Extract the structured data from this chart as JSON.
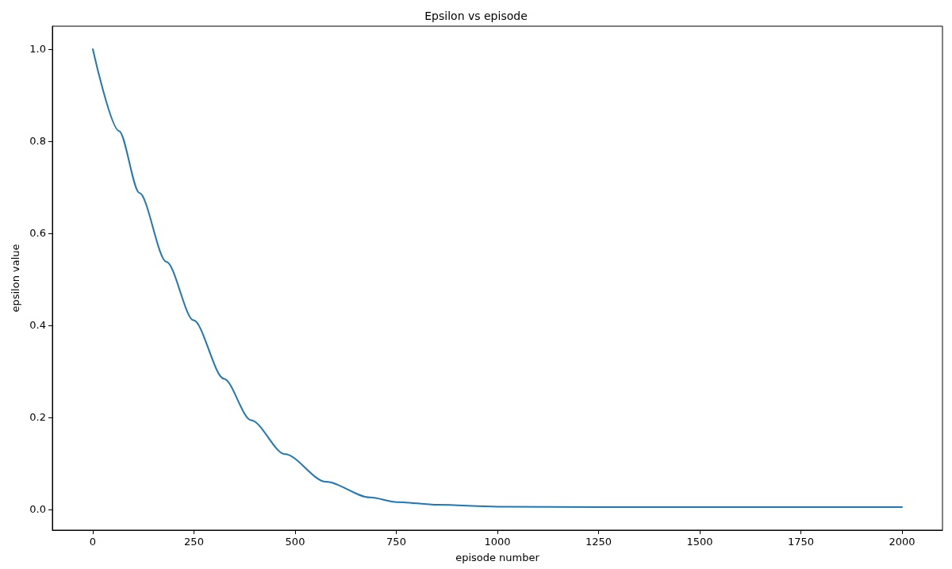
{
  "chart_data": {
    "type": "line",
    "title": "Epsilon vs episode",
    "xlabel": "episode number",
    "ylabel": "epsilon value",
    "x": [
      0,
      65,
      115,
      182,
      249,
      324,
      391,
      475,
      576,
      685,
      752,
      852,
      1000,
      1250,
      1500,
      1750,
      2000
    ],
    "series": [
      {
        "color": "#1f77b4",
        "values": [
          1.0,
          0.822,
          0.688,
          0.538,
          0.411,
          0.284,
          0.194,
          0.12,
          0.06,
          0.026,
          0.016,
          0.01,
          0.006,
          0.005,
          0.005,
          0.005,
          0.005
        ]
      }
    ],
    "xlim": [
      -100,
      2100
    ],
    "xticks": [
      0,
      250,
      500,
      750,
      1000,
      1250,
      1500,
      1750,
      2000
    ],
    "ylim": [
      -0.045,
      1.05
    ],
    "yticks": [
      {
        "value": 0,
        "label": "0.0"
      },
      {
        "value": 0.2,
        "label": "0.2"
      },
      {
        "value": 0.4,
        "label": "0.4"
      },
      {
        "value": 0.6,
        "label": "0.6"
      },
      {
        "value": 0.8,
        "label": "0.8"
      },
      {
        "value": 1,
        "label": "1.0"
      }
    ],
    "grid": false,
    "marker": "none",
    "line_style": "solid"
  }
}
